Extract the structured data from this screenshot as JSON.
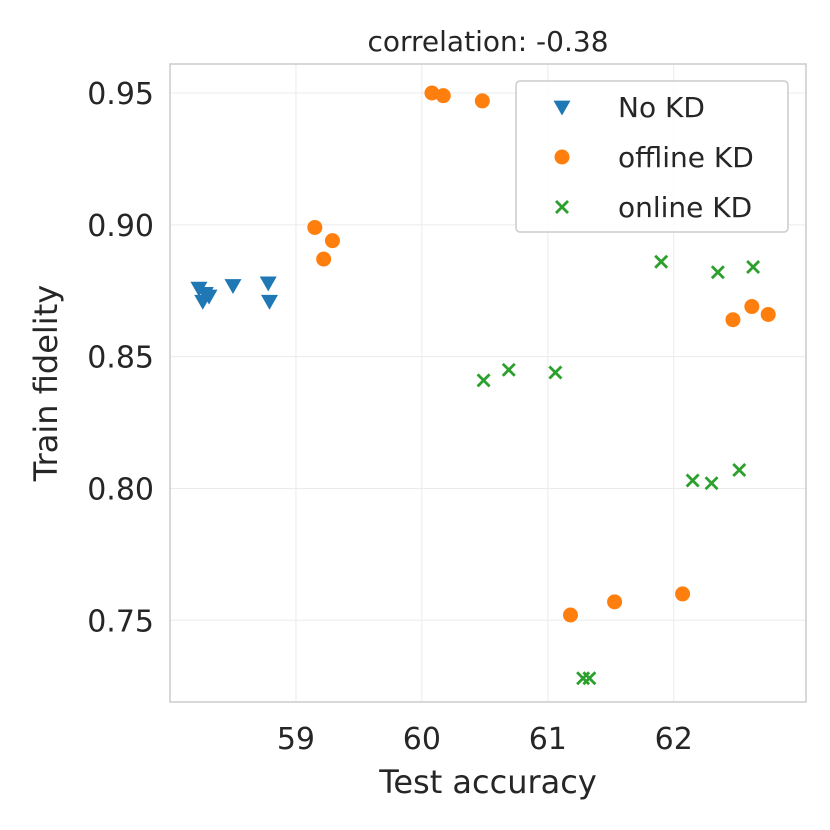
{
  "chart_data": {
    "type": "scatter",
    "title": "correlation: -0.38",
    "xlabel": "Test accuracy",
    "ylabel": "Train fidelity",
    "xlim": [
      58.0,
      63.05
    ],
    "ylim": [
      0.719,
      0.961
    ],
    "xticks": [
      59,
      60,
      61,
      62
    ],
    "xtick_labels": [
      "59",
      "60",
      "61",
      "62"
    ],
    "yticks": [
      0.75,
      0.8,
      0.85,
      0.9,
      0.95
    ],
    "ytick_labels": [
      "0.75",
      "0.80",
      "0.85",
      "0.90",
      "0.95"
    ],
    "grid": true,
    "legend_position": "top-right",
    "series": [
      {
        "name": "No KD",
        "marker": "triangle-down",
        "color": "#1f77b4",
        "x": [
          58.23,
          58.26,
          58.28,
          58.31,
          58.5,
          58.78,
          58.79
        ],
        "y": [
          0.876,
          0.871,
          0.874,
          0.873,
          0.877,
          0.878,
          0.871
        ]
      },
      {
        "name": "offline KD",
        "marker": "circle",
        "color": "#ff7f0e",
        "x": [
          60.08,
          60.17,
          60.48,
          59.15,
          59.29,
          59.22,
          61.18,
          61.53,
          62.07,
          62.47,
          62.62,
          62.75
        ],
        "y": [
          0.95,
          0.949,
          0.947,
          0.899,
          0.894,
          0.887,
          0.752,
          0.757,
          0.76,
          0.864,
          0.869,
          0.866
        ]
      },
      {
        "name": "online KD",
        "marker": "x",
        "color": "#2ca02c",
        "x": [
          60.49,
          60.69,
          61.06,
          61.9,
          62.35,
          62.63,
          62.15,
          62.3,
          62.52,
          61.28,
          61.33
        ],
        "y": [
          0.841,
          0.845,
          0.844,
          0.886,
          0.882,
          0.884,
          0.803,
          0.802,
          0.807,
          0.728,
          0.728
        ]
      }
    ]
  }
}
